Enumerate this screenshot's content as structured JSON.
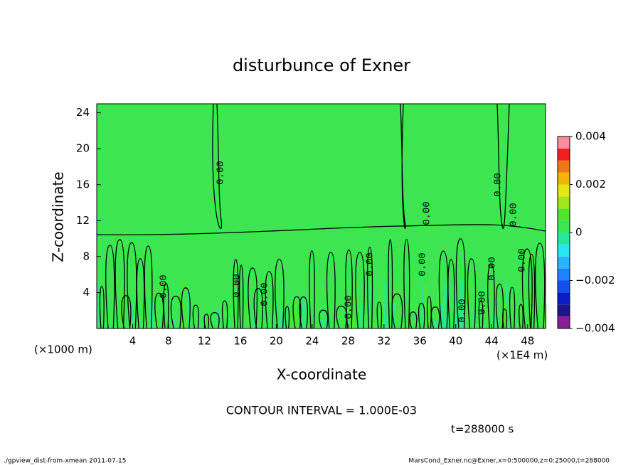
{
  "chart_data": {
    "type": "contour",
    "title": "disturbunce of Exner",
    "x_label": "X-coordinate",
    "y_label": "Z-coordinate",
    "x_unit": "(×1E4 m)",
    "y_unit": "(×1000 m)",
    "xlim": [
      0,
      50
    ],
    "ylim": [
      0,
      25
    ],
    "xticks": [
      4,
      8,
      12,
      16,
      20,
      24,
      28,
      32,
      36,
      40,
      44,
      48
    ],
    "yticks": [
      4,
      8,
      12,
      16,
      20,
      24
    ],
    "contour_label": "0.00",
    "contour_interval_text": "CONTOUR INTERVAL = 1.000E-03",
    "time_text": "t=288000 s",
    "colorbar": {
      "lim": [
        -0.004,
        0.004
      ],
      "ticks": [
        {
          "value": 0.004,
          "label": "0.004"
        },
        {
          "value": 0.002,
          "label": "0.002"
        },
        0,
        {
          "value": -0.002,
          "label": "−0.002"
        },
        {
          "value": -0.004,
          "label": "−0.004"
        }
      ],
      "colors": [
        "#8b1e96",
        "#1e148c",
        "#0a1ec8",
        "#1450f0",
        "#1e82ff",
        "#28b4ff",
        "#28e6f0",
        "#28e6a0",
        "#3ce650",
        "#50e628",
        "#a0e61e",
        "#e6e614",
        "#f0b40a",
        "#f07814",
        "#f01e1e",
        "#ff8c9c"
      ]
    },
    "footer_left": "./gpview_dist-from-xmean  2011-07-15",
    "footer_right": "MarsCond_Exner.nc@Exner,x=0:500000,z=0:25000,t=288000"
  }
}
